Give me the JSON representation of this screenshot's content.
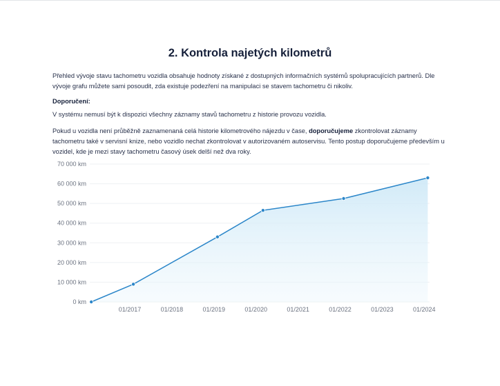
{
  "title": "2. Kontrola najetých kilometrů",
  "intro": "Přehled vývoje stavu tachometru vozidla obsahuje hodnoty získané z dostupných informačních systémů spolupracujících partnerů. Dle vývoje grafu můžete sami posoudit, zda existuje podezření na manipulaci se stavem tachometru či nikoliv.",
  "recommend_heading": "Doporučení:",
  "note1": "V systému nemusí být k dispozici všechny záznamy stavů tachometru z historie provozu vozidla.",
  "note2_before": "Pokud u vozidla není průběžně zaznamenaná celá historie kilometrového nájezdu v čase, ",
  "note2_bold": "doporučujeme",
  "note2_after": " zkontrolovat záznamy tachometru také v servisní knize, nebo vozidlo nechat zkontrolovat v autorizovaném autoservisu. Tento postup doporučujeme především u vozidel, kde je mezi stavy tachometru časový úsek delší než dva roky.",
  "chart_data": {
    "type": "area",
    "title": "",
    "xlabel": "",
    "ylabel": "",
    "ylim": [
      0,
      70000
    ],
    "yticks": [
      0,
      10000,
      20000,
      30000,
      40000,
      50000,
      60000,
      70000
    ],
    "ytick_labels": [
      "0 km",
      "10 000 km",
      "20 000 km",
      "30 000 km",
      "40 000 km",
      "50 000 km",
      "60 000 km",
      "70 000 km"
    ],
    "xticks": [
      "2017-01",
      "2018-01",
      "2019-01",
      "2020-01",
      "2021-01",
      "2022-01",
      "2023-01",
      "2024-01"
    ],
    "xtick_labels": [
      "01/2017",
      "01/2018",
      "01/2019",
      "01/2020",
      "01/2021",
      "01/2022",
      "01/2023",
      "01/2024"
    ],
    "grid": true,
    "line_color": "#2b86c9",
    "fill_color": "#cfe9f7",
    "points": [
      {
        "x": "2016-02",
        "y": 0
      },
      {
        "x": "2017-02",
        "y": 9000
      },
      {
        "x": "2019-02",
        "y": 33000
      },
      {
        "x": "2020-03",
        "y": 46500
      },
      {
        "x": "2022-02",
        "y": 52500
      },
      {
        "x": "2024-02",
        "y": 63000
      }
    ]
  }
}
